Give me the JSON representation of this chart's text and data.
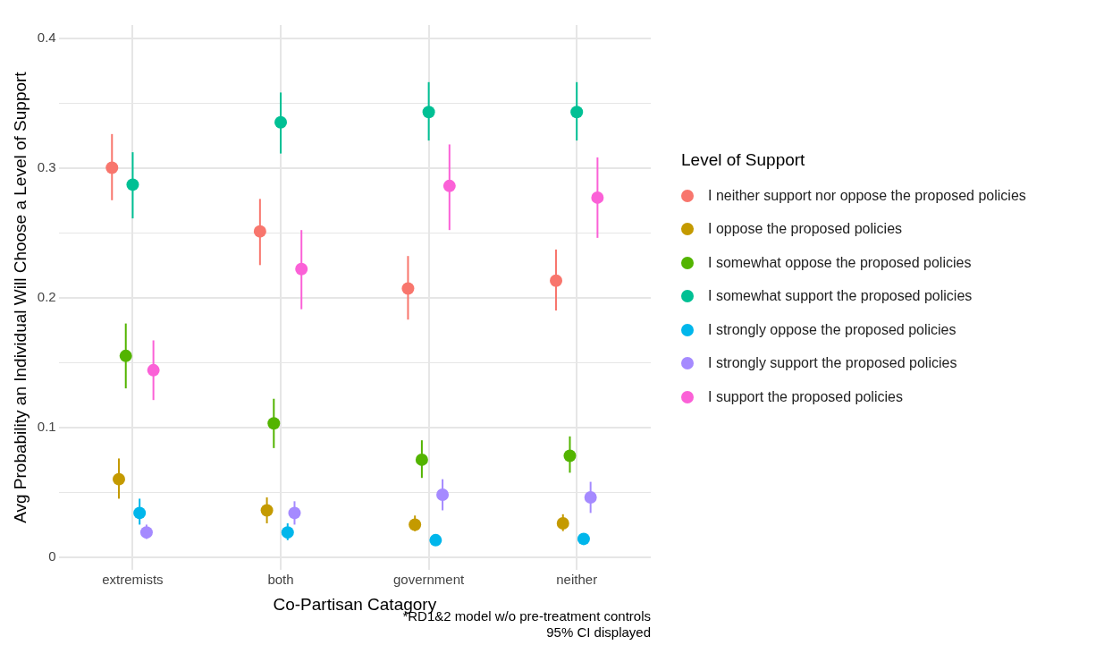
{
  "chart_data": {
    "type": "scatter",
    "xlabel": "Co-Partisan Catagory",
    "ylabel": "Avg Probability an Individual Will Choose a Level of Support",
    "legend_title": "Level of Support",
    "legend": "right",
    "grid": true,
    "marker": "circle",
    "categories": [
      "extremists",
      "both",
      "government",
      "neither"
    ],
    "ylim": [
      -0.01,
      0.41
    ],
    "yticks": [
      0,
      {
        "value": 0.05,
        "label": null
      },
      0.1,
      {
        "value": 0.15,
        "label": null
      },
      0.2,
      {
        "value": 0.25,
        "label": null
      },
      0.3,
      {
        "value": 0.35,
        "label": null
      },
      0.4
    ],
    "annotations": [
      "*RD1&2 model w/o pre-treatment controls",
      "95% CI displayed"
    ],
    "series": [
      {
        "name": "I neither support nor oppose the proposed policies",
        "color": "#f8766d",
        "values": [
          0.3,
          0.251,
          0.207,
          0.213
        ],
        "errors": [
          [
            0.275,
            0.326
          ],
          [
            0.225,
            0.276
          ],
          [
            0.183,
            0.232
          ],
          [
            0.19,
            0.237
          ]
        ]
      },
      {
        "name": "I oppose the proposed policies",
        "color": "#c49a00",
        "values": [
          0.06,
          0.036,
          0.025,
          0.026
        ],
        "errors": [
          [
            0.045,
            0.076
          ],
          [
            0.026,
            0.046
          ],
          [
            0.02,
            0.032
          ],
          [
            0.02,
            0.033
          ]
        ]
      },
      {
        "name": "I somewhat oppose the proposed policies",
        "color": "#53b400",
        "values": [
          0.155,
          0.103,
          0.075,
          0.078
        ],
        "errors": [
          [
            0.13,
            0.18
          ],
          [
            0.084,
            0.122
          ],
          [
            0.061,
            0.09
          ],
          [
            0.065,
            0.093
          ]
        ]
      },
      {
        "name": "I somewhat support the proposed policies",
        "color": "#00c094",
        "values": [
          0.287,
          0.335,
          0.343,
          0.343
        ],
        "errors": [
          [
            0.261,
            0.312
          ],
          [
            0.311,
            0.358
          ],
          [
            0.321,
            0.366
          ],
          [
            0.321,
            0.366
          ]
        ]
      },
      {
        "name": "I strongly oppose the proposed policies",
        "color": "#00b6eb",
        "values": [
          0.034,
          0.019,
          0.013,
          0.014
        ],
        "errors": [
          [
            0.025,
            0.045
          ],
          [
            0.013,
            0.026
          ],
          [
            0.01,
            0.017
          ],
          [
            0.01,
            0.018
          ]
        ]
      },
      {
        "name": "I strongly support the proposed policies",
        "color": "#a58aff",
        "values": [
          0.019,
          0.034,
          0.048,
          0.046
        ],
        "errors": [
          [
            0.014,
            0.025
          ],
          [
            0.025,
            0.043
          ],
          [
            0.036,
            0.06
          ],
          [
            0.034,
            0.058
          ]
        ]
      },
      {
        "name": "I support the proposed policies",
        "color": "#fb61d7",
        "values": [
          0.144,
          0.222,
          0.286,
          0.277
        ],
        "errors": [
          [
            0.121,
            0.167
          ],
          [
            0.191,
            0.252
          ],
          [
            0.252,
            0.318
          ],
          [
            0.246,
            0.308
          ]
        ]
      }
    ]
  }
}
